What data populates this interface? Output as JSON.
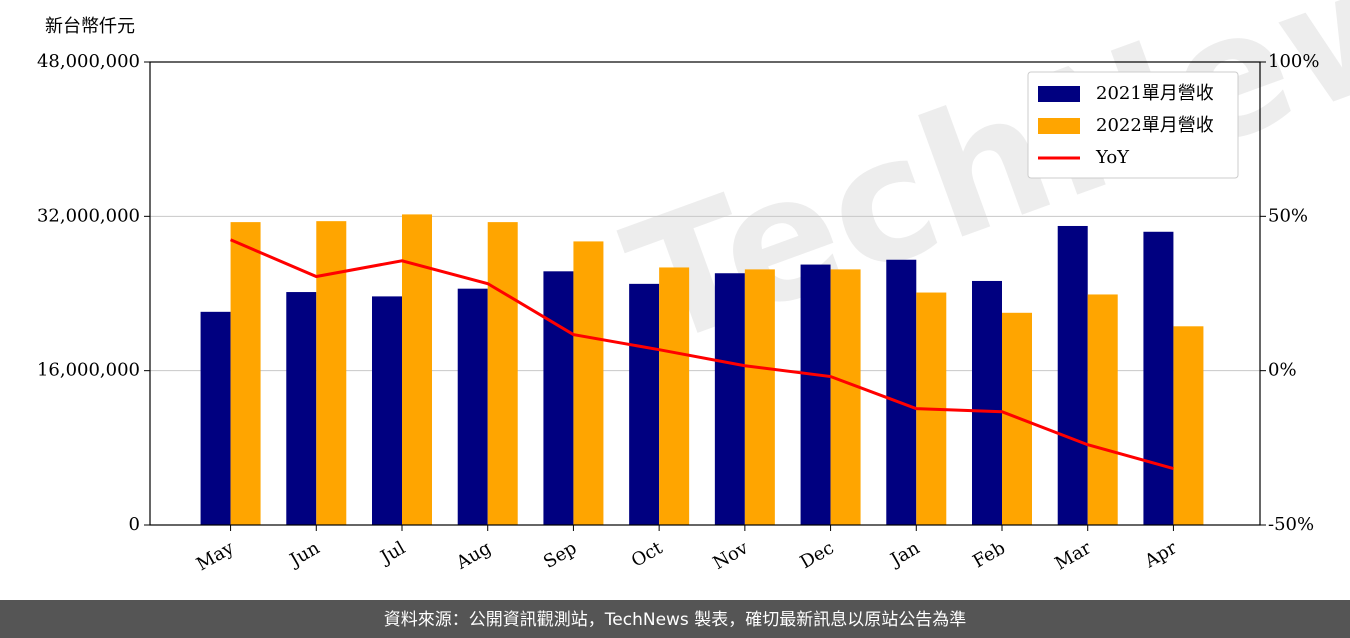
{
  "chart_data": {
    "type": "bar_line",
    "y_axis_label": "新台幣仟元",
    "watermark": "TechNews",
    "categories": [
      "May",
      "Jun",
      "Jul",
      "Aug",
      "Sep",
      "Oct",
      "Nov",
      "Dec",
      "Jan",
      "Feb",
      "Mar",
      "Apr"
    ],
    "series": [
      {
        "name": "2021單月營收",
        "color": "#000080",
        "kind": "bar",
        "values": [
          22100000,
          24150000,
          23700000,
          24500000,
          26300000,
          25000000,
          26100000,
          27000000,
          27500000,
          25300000,
          31000000,
          30400000
        ]
      },
      {
        "name": "2022單月營收",
        "color": "#ffa500",
        "kind": "bar",
        "values": [
          31400000,
          31500000,
          32200000,
          31400000,
          29400000,
          26700000,
          26500000,
          26500000,
          24100000,
          22000000,
          23900000,
          20600000
        ]
      },
      {
        "name": "YoY",
        "color": "#ff0000",
        "kind": "line",
        "axis": "y2",
        "values": [
          42.4,
          30.5,
          35.6,
          28.2,
          11.7,
          6.8,
          1.6,
          -1.9,
          -12.3,
          -13.3,
          -24.0,
          -31.7
        ]
      }
    ],
    "ylim": [
      0,
      48000000
    ],
    "yticks": [
      0,
      {
        "value": 16000000,
        "label": "16,000,000"
      },
      {
        "value": 32000000,
        "label": "32,000,000"
      },
      {
        "value": 48000000,
        "label": "48,000,000"
      }
    ],
    "y2lim": [
      -50,
      100
    ],
    "y2ticks": [
      {
        "value": -50,
        "label": "-50%"
      },
      {
        "value": 0,
        "label": "0%"
      },
      {
        "value": 50,
        "label": "50%"
      },
      {
        "value": 100,
        "label": "100%"
      }
    ],
    "grid": true,
    "legend": "upper right"
  },
  "footer": "資料來源：公開資訊觀測站，TechNews 製表，確切最新訊息以原站公告為準"
}
